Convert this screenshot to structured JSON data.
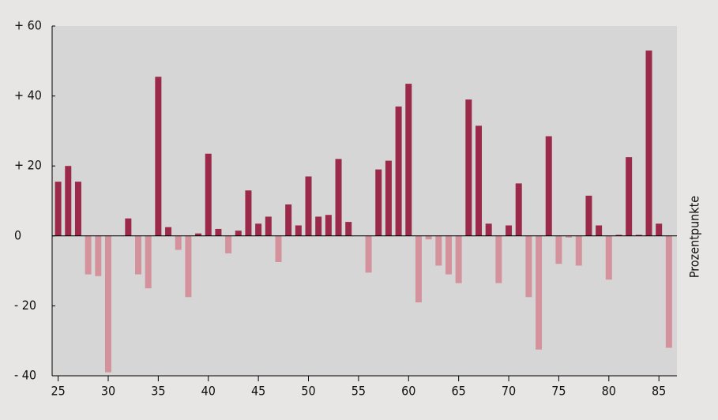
{
  "chart_data": {
    "type": "bar",
    "y_label": "Prozentpunkte",
    "x": [
      25,
      26,
      27,
      28,
      29,
      30,
      31,
      32,
      33,
      34,
      35,
      36,
      37,
      38,
      39,
      40,
      41,
      42,
      43,
      44,
      45,
      46,
      47,
      48,
      49,
      50,
      51,
      52,
      53,
      54,
      55,
      56,
      57,
      58,
      59,
      60,
      61,
      62,
      63,
      64,
      65,
      66,
      67,
      68,
      69,
      70,
      71,
      72,
      73,
      74,
      75,
      76,
      77,
      78,
      79,
      80,
      81,
      82,
      83,
      84,
      85,
      86
    ],
    "values": [
      15.5,
      20,
      15.5,
      -11,
      -11.5,
      -39,
      0,
      5,
      -11,
      -15,
      45.5,
      2.5,
      -4,
      -17.5,
      0.7,
      23.5,
      2,
      -5,
      1.5,
      13,
      3.5,
      5.5,
      -7.5,
      9,
      3,
      17,
      5.5,
      6,
      22,
      4,
      0,
      -10.5,
      19,
      21.5,
      37,
      43.5,
      -19,
      -1,
      -8.5,
      -11,
      -13.5,
      39,
      31.5,
      3.5,
      -13.5,
      3,
      15,
      -17.5,
      -32.5,
      28.5,
      -8,
      -0.5,
      -8.5,
      11.5,
      3,
      -12.5,
      0.3,
      22.5,
      0.3,
      53,
      3.5,
      -32
    ],
    "color": "#9b2a4a",
    "negative_color": "#d4939c",
    "xlim": [
      24.4,
      86.8
    ],
    "xticks": [
      25,
      30,
      35,
      40,
      45,
      50,
      55,
      60,
      65,
      70,
      75,
      80,
      85
    ],
    "ylim": [
      -40,
      60
    ],
    "yticks": [
      {
        "value": 60,
        "label": "+ 60"
      },
      {
        "value": 40,
        "label": "+ 40"
      },
      {
        "value": 20,
        "label": "+ 20"
      },
      0,
      {
        "value": -20,
        "label": "- 20"
      },
      {
        "value": -40,
        "label": "- 40"
      }
    ],
    "grid": false
  }
}
